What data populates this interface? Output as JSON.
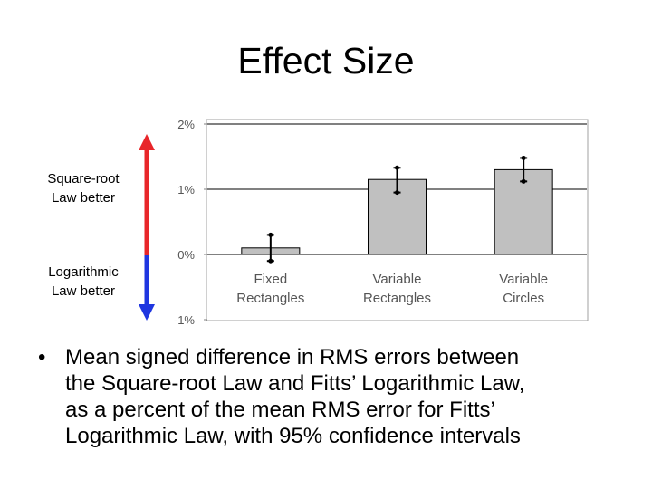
{
  "slide": {
    "title": "Effect Size",
    "label_up": [
      "Square-root",
      "Law better"
    ],
    "label_down": [
      "Logarithmic",
      "Law better"
    ],
    "arrow_up_color": "#e8262a",
    "arrow_down_color": "#1f36e0",
    "bullets": [
      {
        "marker": "•",
        "lines": [
          "Mean signed difference in RMS errors between",
          "the Square-root Law and Fitts’ Logarithmic Law,",
          "as a percent of the mean RMS error for Fitts’",
          "Logarithmic Law, with 95% confidence intervals"
        ]
      }
    ]
  },
  "chart_data": {
    "type": "bar",
    "categories": [
      [
        "Fixed",
        "Rectangles"
      ],
      [
        "Variable",
        "Rectangles"
      ],
      [
        "Variable",
        "Circles"
      ]
    ],
    "values": [
      0.1,
      1.15,
      1.3
    ],
    "error_low": [
      -0.1,
      0.95,
      1.12
    ],
    "error_high": [
      0.3,
      1.33,
      1.48
    ],
    "ylim": [
      -1,
      2
    ],
    "yticks": [
      -1,
      0,
      1,
      2
    ],
    "ytick_labels": [
      "-1%",
      "0%",
      "1%",
      "2%"
    ],
    "grid": true,
    "bar_color": "#c0c0c0",
    "label_color": "#555555"
  }
}
